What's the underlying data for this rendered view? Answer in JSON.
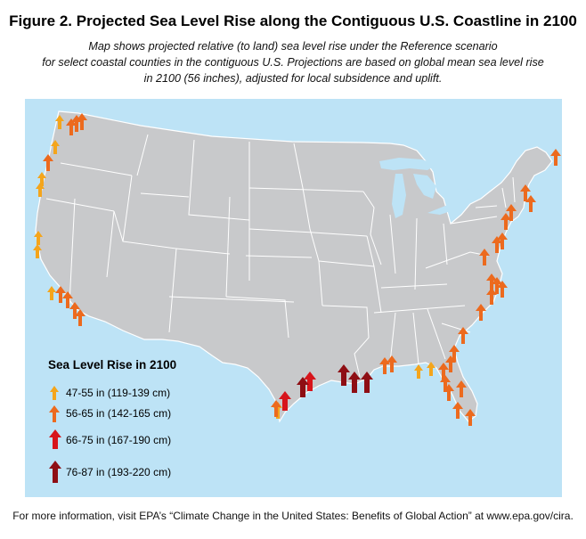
{
  "title": "Figure 2. Projected Sea Level Rise along the Contiguous U.S. Coastline in 2100",
  "subtitle_lines": [
    "Map shows projected relative (to land) sea level rise under the Reference scenario",
    "for select coastal counties in the contiguous U.S. Projections are based on global mean sea level rise",
    "in 2100 (56 inches), adjusted for local subsidence and uplift."
  ],
  "legend": {
    "title": "Sea Level Rise in 2100",
    "items": [
      {
        "label": "47-55 in (119-139 cm)",
        "color": "#f4a51c",
        "icon": "arrow-up-small-icon"
      },
      {
        "label": "56-65 in (142-165 cm)",
        "color": "#ec6a1e",
        "icon": "arrow-up-medium-icon"
      },
      {
        "label": "66-75 in (167-190 cm)",
        "color": "#d7141b",
        "icon": "arrow-up-large-icon"
      },
      {
        "label": "76-87 in (193-220 cm)",
        "color": "#8e0e14",
        "icon": "arrow-up-xlarge-icon"
      }
    ]
  },
  "colors": {
    "ocean": "#bde3f6",
    "land": "#c8c9cb",
    "border": "#ffffff"
  },
  "footer": "For more information, visit EPA’s “Climate Change in the United States: Benefits of Global Action” at www.epa.gov/cira."
}
